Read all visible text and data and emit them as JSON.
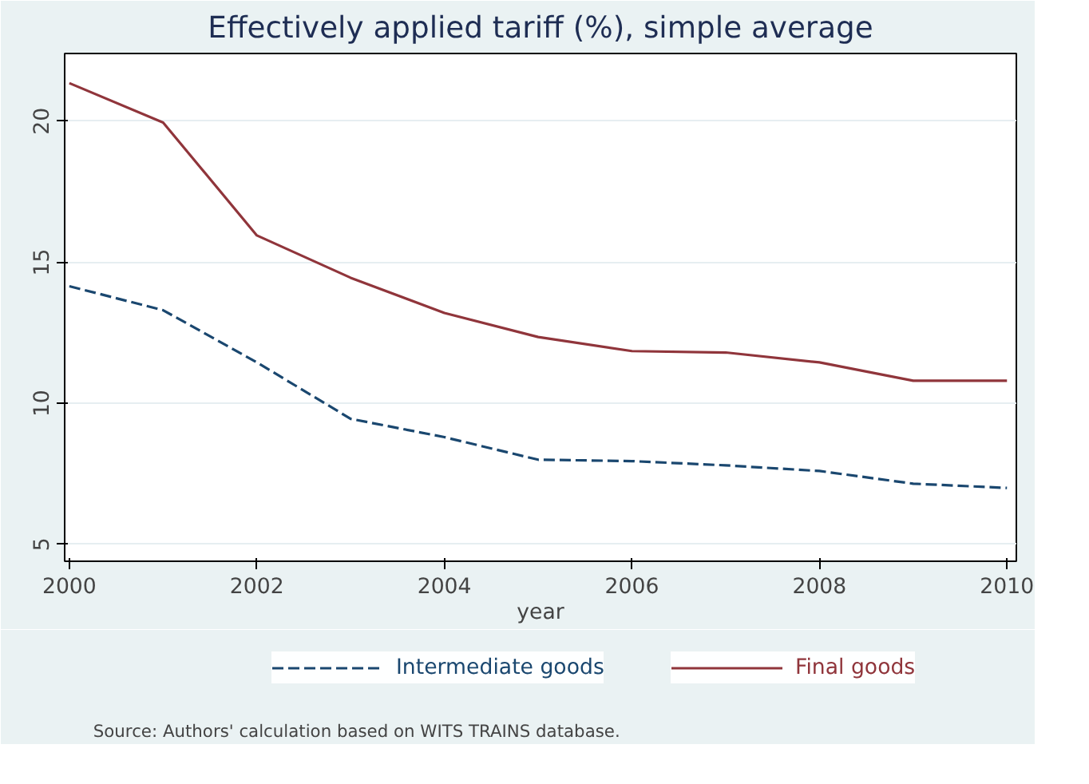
{
  "chart_data": {
    "type": "line",
    "title": "Effectively applied tariff (%), simple average",
    "xlabel": "year",
    "x": [
      2000,
      2001,
      2002,
      2003,
      2004,
      2005,
      2006,
      2007,
      2008,
      2009,
      2010
    ],
    "series": [
      {
        "name": "Intermediate goods",
        "color": "#1a476f",
        "line_style": "dashed",
        "values": [
          14.15,
          13.3,
          11.45,
          9.45,
          8.8,
          8.0,
          7.95,
          7.8,
          7.6,
          7.15,
          7.0
        ]
      },
      {
        "name": "Final goods",
        "color": "#90353b",
        "line_style": "solid",
        "values": [
          21.35,
          19.95,
          15.95,
          14.45,
          13.2,
          12.35,
          11.85,
          11.8,
          11.45,
          10.8,
          10.8
        ]
      }
    ],
    "xlim": [
      1999.95,
      2010.1
    ],
    "ylim": [
      4.4,
      22.4
    ],
    "xticks": [
      2000,
      2002,
      2004,
      2006,
      2008,
      2010
    ],
    "yticks": [
      5,
      10,
      15,
      20
    ],
    "grid": "y",
    "legend": "bottom",
    "marker": "none",
    "annotations": [
      "Source: Authors' calculation based on WITS TRAINS database."
    ]
  }
}
